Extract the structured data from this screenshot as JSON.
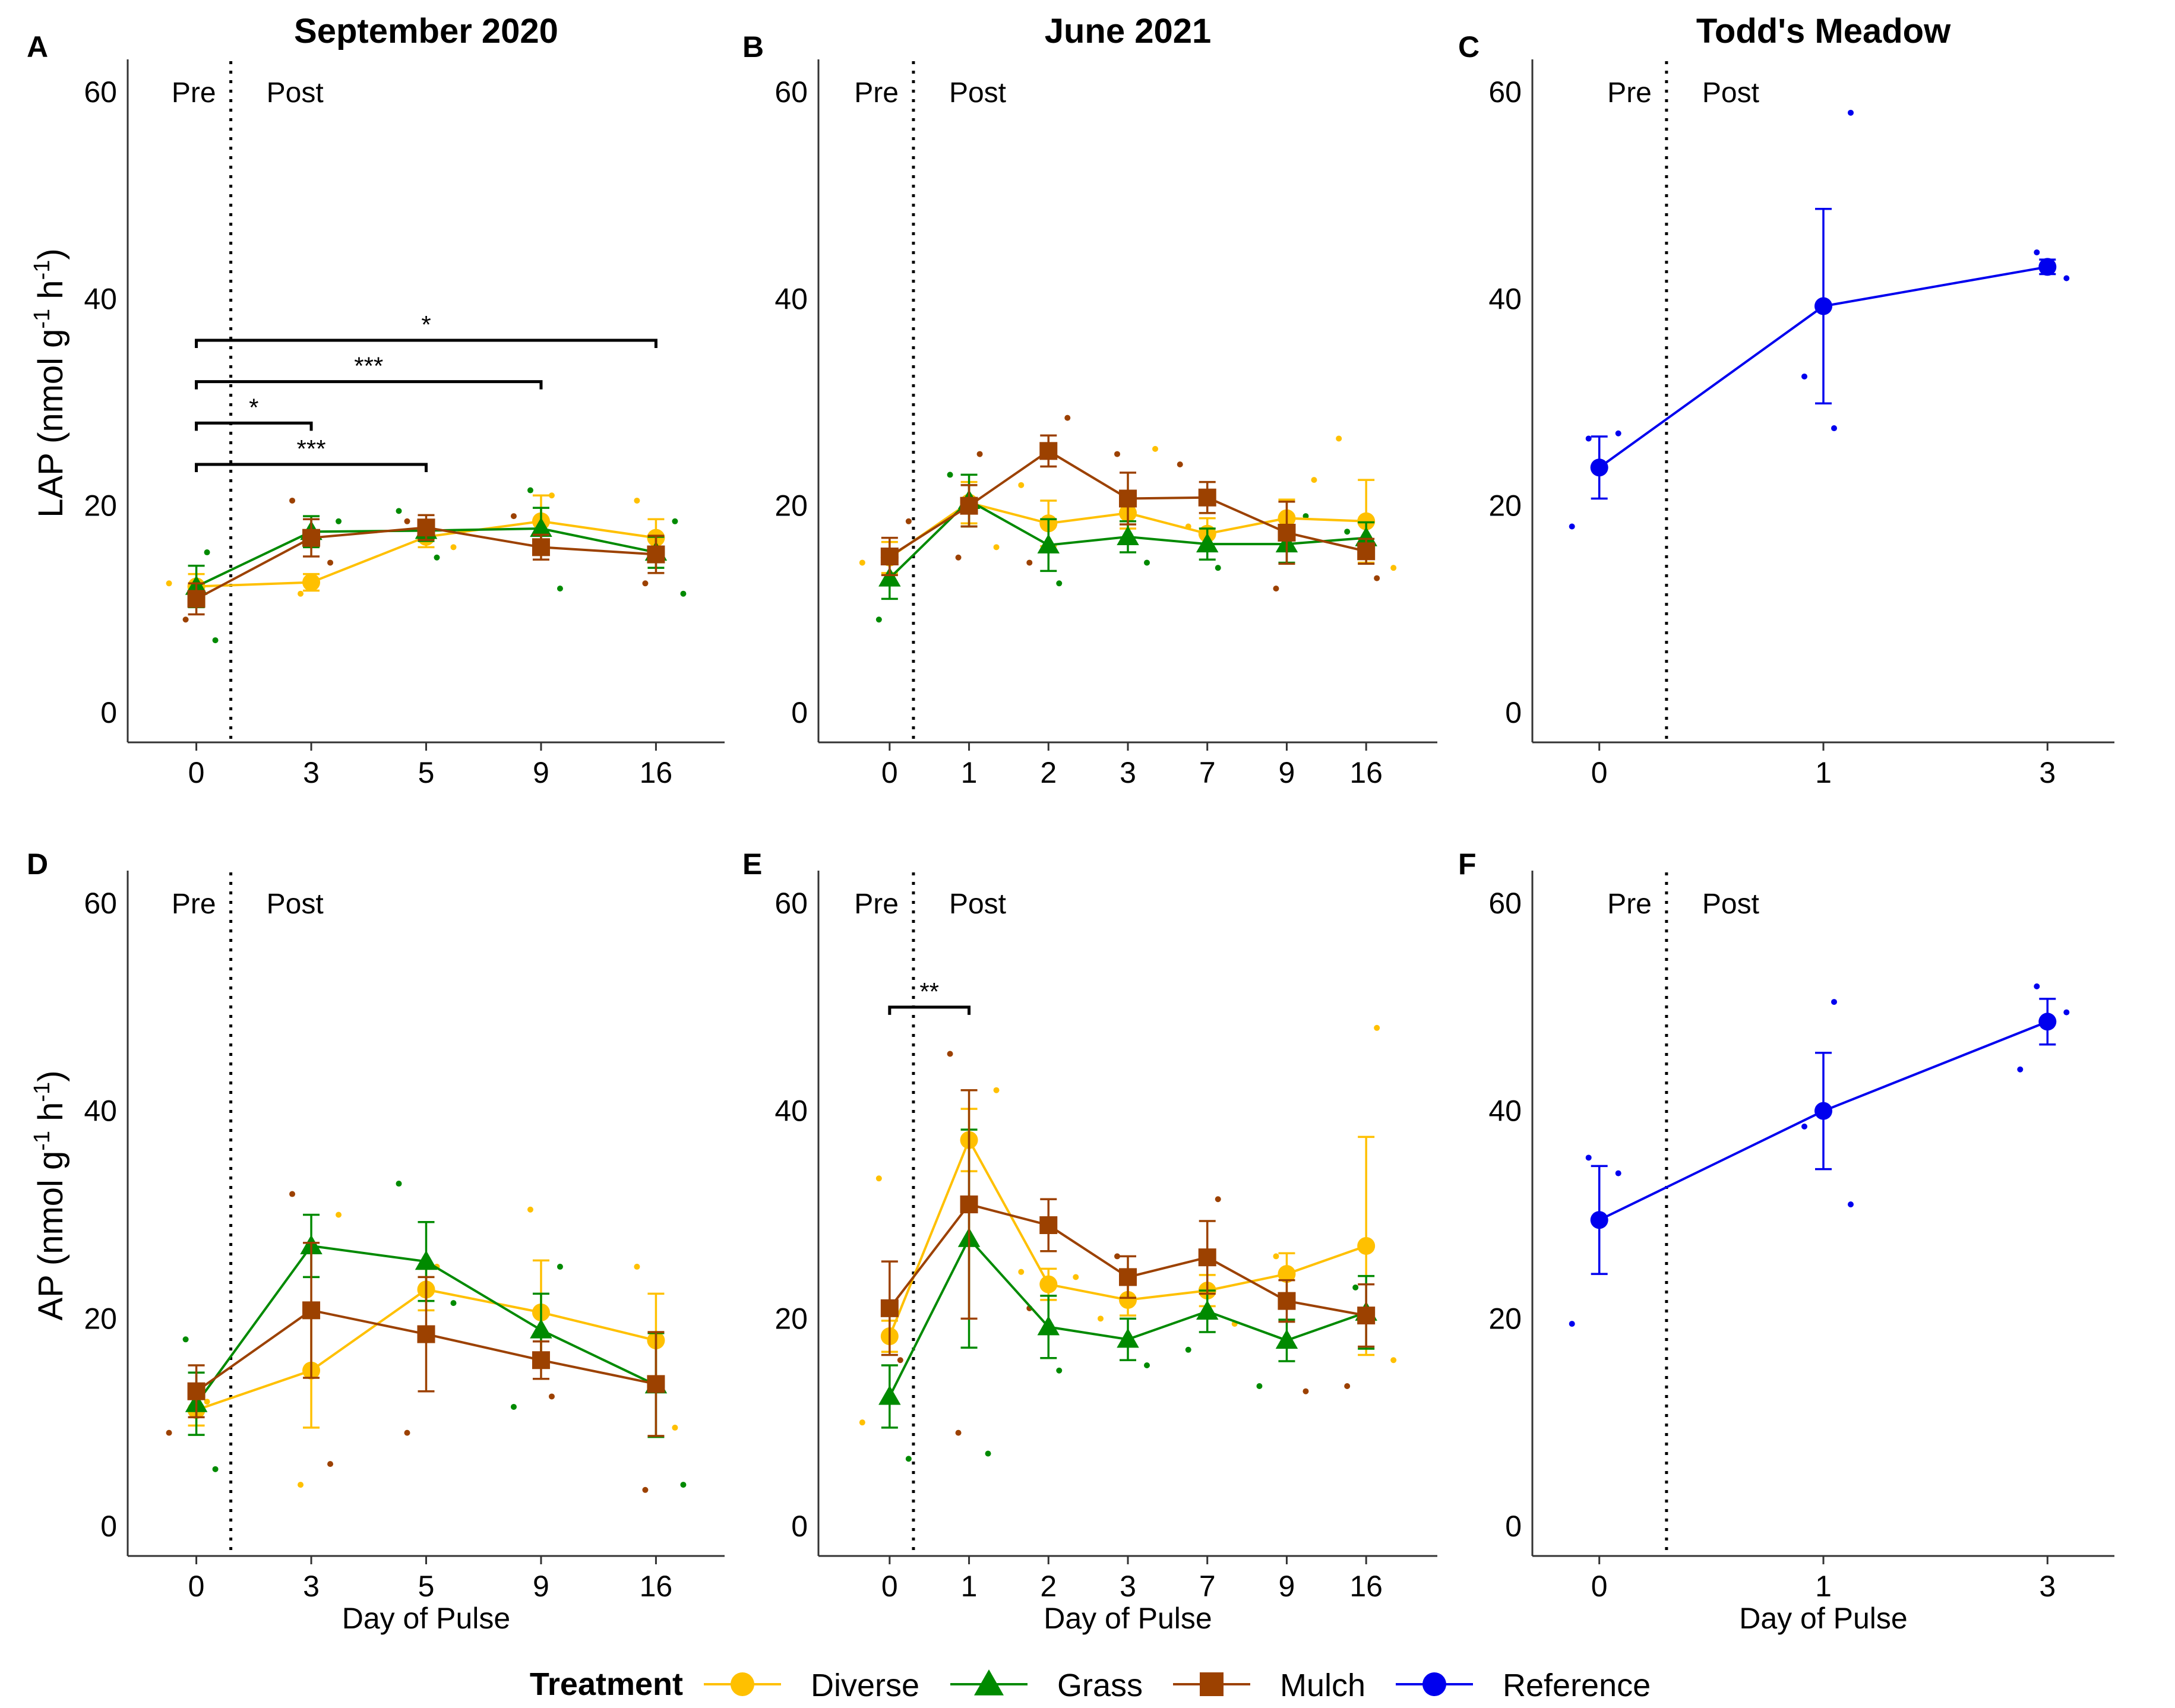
{
  "legend": {
    "title": "Treatment",
    "items": [
      {
        "name": "Diverse",
        "color": "#ffc000",
        "shape": "circle"
      },
      {
        "name": "Grass",
        "color": "#008a00",
        "shape": "triangle"
      },
      {
        "name": "Mulch",
        "color": "#9c4100",
        "shape": "square"
      },
      {
        "name": "Reference",
        "color": "#0000ee",
        "shape": "circle"
      }
    ]
  },
  "chart_data": [
    {
      "id": "A",
      "type": "line",
      "title": "September 2020",
      "xlabel": "",
      "ylabel": "LAP (nmol g-1 h-1)",
      "ylim": [
        0,
        60
      ],
      "yticks": [
        0,
        20,
        40,
        60
      ],
      "categories": [
        "0",
        "3",
        "5",
        "9",
        "16"
      ],
      "pre_label": "Pre",
      "post_label": "Post",
      "divider_after_index": 0,
      "series": [
        {
          "name": "Diverse",
          "values": [
            12.2,
            12.6,
            17.0,
            18.5,
            16.9
          ],
          "errors": [
            1.2,
            0.8,
            1.0,
            2.5,
            1.8
          ]
        },
        {
          "name": "Grass",
          "values": [
            12.2,
            17.5,
            17.6,
            17.8,
            15.5
          ],
          "errors": [
            2.0,
            1.5,
            1.0,
            2.0,
            1.5
          ]
        },
        {
          "name": "Mulch",
          "values": [
            11.0,
            16.9,
            17.9,
            16.0,
            15.3
          ],
          "errors": [
            1.5,
            1.8,
            1.2,
            1.2,
            1.8
          ]
        }
      ],
      "points": [
        {
          "x": 0,
          "y": 9.0,
          "s": "Mulch"
        },
        {
          "x": 0,
          "y": 7.0,
          "s": "Grass"
        },
        {
          "x": 0,
          "y": 12.5,
          "s": "Diverse"
        },
        {
          "x": 0,
          "y": 15.5,
          "s": "Grass"
        },
        {
          "x": 1,
          "y": 20.5,
          "s": "Mulch"
        },
        {
          "x": 1,
          "y": 18.5,
          "s": "Grass"
        },
        {
          "x": 1,
          "y": 11.5,
          "s": "Diverse"
        },
        {
          "x": 1,
          "y": 14.5,
          "s": "Mulch"
        },
        {
          "x": 2,
          "y": 19.5,
          "s": "Grass"
        },
        {
          "x": 2,
          "y": 15.0,
          "s": "Grass"
        },
        {
          "x": 2,
          "y": 18.5,
          "s": "Mulch"
        },
        {
          "x": 2,
          "y": 16.0,
          "s": "Diverse"
        },
        {
          "x": 3,
          "y": 21.5,
          "s": "Grass"
        },
        {
          "x": 3,
          "y": 12.0,
          "s": "Grass"
        },
        {
          "x": 3,
          "y": 19.0,
          "s": "Mulch"
        },
        {
          "x": 3,
          "y": 21.0,
          "s": "Diverse"
        },
        {
          "x": 4,
          "y": 20.5,
          "s": "Diverse"
        },
        {
          "x": 4,
          "y": 11.5,
          "s": "Grass"
        },
        {
          "x": 4,
          "y": 12.5,
          "s": "Mulch"
        },
        {
          "x": 4,
          "y": 18.5,
          "s": "Grass"
        }
      ],
      "brackets": [
        {
          "from": 0,
          "to": 4,
          "y": 36,
          "label": "*"
        },
        {
          "from": 0,
          "to": 3,
          "y": 32,
          "label": "***"
        },
        {
          "from": 0,
          "to": 1,
          "y": 28,
          "label": "*"
        },
        {
          "from": 0,
          "to": 2,
          "y": 24,
          "label": "***"
        }
      ]
    },
    {
      "id": "B",
      "type": "line",
      "title": "June 2021",
      "xlabel": "",
      "ylabel": "",
      "ylim": [
        0,
        60
      ],
      "yticks": [
        0,
        20,
        40,
        60
      ],
      "categories": [
        "0",
        "1",
        "2",
        "3",
        "7",
        "9",
        "16"
      ],
      "pre_label": "Pre",
      "post_label": "Post",
      "divider_after_index": 0,
      "series": [
        {
          "name": "Diverse",
          "values": [
            15.0,
            20.3,
            18.3,
            19.3,
            17.3,
            18.8,
            18.5
          ],
          "errors": [
            1.5,
            2.0,
            2.2,
            1.5,
            1.5,
            1.8,
            4.0
          ]
        },
        {
          "name": "Grass",
          "values": [
            13.0,
            20.5,
            16.2,
            17.0,
            16.3,
            16.3,
            16.9
          ],
          "errors": [
            2.0,
            2.5,
            2.5,
            1.5,
            1.5,
            1.8,
            1.5
          ]
        },
        {
          "name": "Mulch",
          "values": [
            15.1,
            20.0,
            25.3,
            20.7,
            20.8,
            17.4,
            15.6
          ],
          "errors": [
            1.8,
            2.0,
            1.5,
            2.5,
            1.5,
            3.0,
            1.2
          ]
        }
      ],
      "points": [
        {
          "x": 0,
          "y": 9.0,
          "s": "Grass"
        },
        {
          "x": 0,
          "y": 18.5,
          "s": "Mulch"
        },
        {
          "x": 0,
          "y": 14.5,
          "s": "Diverse"
        },
        {
          "x": 1,
          "y": 25.0,
          "s": "Mulch"
        },
        {
          "x": 1,
          "y": 23.0,
          "s": "Grass"
        },
        {
          "x": 1,
          "y": 16.0,
          "s": "Diverse"
        },
        {
          "x": 1,
          "y": 15.0,
          "s": "Mulch"
        },
        {
          "x": 2,
          "y": 28.5,
          "s": "Mulch"
        },
        {
          "x": 2,
          "y": 22.0,
          "s": "Diverse"
        },
        {
          "x": 2,
          "y": 12.5,
          "s": "Grass"
        },
        {
          "x": 2,
          "y": 14.5,
          "s": "Mulch"
        },
        {
          "x": 3,
          "y": 25.5,
          "s": "Diverse"
        },
        {
          "x": 3,
          "y": 25.0,
          "s": "Mulch"
        },
        {
          "x": 3,
          "y": 14.5,
          "s": "Grass"
        },
        {
          "x": 4,
          "y": 24.0,
          "s": "Mulch"
        },
        {
          "x": 4,
          "y": 14.0,
          "s": "Grass"
        },
        {
          "x": 4,
          "y": 18.0,
          "s": "Diverse"
        },
        {
          "x": 5,
          "y": 22.5,
          "s": "Diverse"
        },
        {
          "x": 5,
          "y": 12.0,
          "s": "Mulch"
        },
        {
          "x": 5,
          "y": 19.0,
          "s": "Grass"
        },
        {
          "x": 6,
          "y": 26.5,
          "s": "Diverse"
        },
        {
          "x": 6,
          "y": 13.0,
          "s": "Mulch"
        },
        {
          "x": 6,
          "y": 17.5,
          "s": "Grass"
        },
        {
          "x": 6,
          "y": 14.0,
          "s": "Diverse"
        }
      ],
      "brackets": []
    },
    {
      "id": "C",
      "type": "line",
      "title": "Todd's Meadow",
      "xlabel": "",
      "ylabel": "",
      "ylim": [
        0,
        60
      ],
      "yticks": [
        0,
        20,
        40,
        60
      ],
      "categories": [
        "0",
        "1",
        "3"
      ],
      "pre_label": "Pre",
      "post_label": "Post",
      "divider_after_index": 0,
      "series": [
        {
          "name": "Reference",
          "values": [
            23.7,
            39.3,
            43.1
          ],
          "errors": [
            3.0,
            9.4,
            0.7
          ]
        }
      ],
      "points": [
        {
          "x": 0,
          "y": 26.5,
          "s": "Reference"
        },
        {
          "x": 0,
          "y": 27.0,
          "s": "Reference"
        },
        {
          "x": 0,
          "y": 18.0,
          "s": "Reference"
        },
        {
          "x": 1,
          "y": 27.5,
          "s": "Reference"
        },
        {
          "x": 1,
          "y": 32.5,
          "s": "Reference"
        },
        {
          "x": 1,
          "y": 58.0,
          "s": "Reference"
        },
        {
          "x": 2,
          "y": 44.5,
          "s": "Reference"
        },
        {
          "x": 2,
          "y": 42.0,
          "s": "Reference"
        }
      ],
      "brackets": []
    },
    {
      "id": "D",
      "type": "line",
      "title": "",
      "xlabel": "Day of Pulse",
      "ylabel": "AP (nmol g-1 h-1)",
      "ylim": [
        0,
        60
      ],
      "yticks": [
        0,
        20,
        40,
        60
      ],
      "categories": [
        "0",
        "3",
        "5",
        "9",
        "16"
      ],
      "pre_label": "Pre",
      "post_label": "Post",
      "divider_after_index": 0,
      "series": [
        {
          "name": "Diverse",
          "values": [
            11.2,
            15.0,
            22.8,
            20.6,
            17.9
          ],
          "errors": [
            1.5,
            5.5,
            2.0,
            5.0,
            4.5
          ]
        },
        {
          "name": "Grass",
          "values": [
            11.8,
            27.0,
            25.5,
            18.9,
            13.6
          ],
          "errors": [
            3.0,
            3.0,
            3.8,
            3.5,
            5.0
          ]
        },
        {
          "name": "Mulch",
          "values": [
            13.0,
            20.8,
            18.5,
            16.0,
            13.7
          ],
          "errors": [
            2.5,
            6.5,
            5.5,
            1.8,
            5.0
          ]
        }
      ],
      "points": [
        {
          "x": 0,
          "y": 18.0,
          "s": "Grass"
        },
        {
          "x": 0,
          "y": 5.5,
          "s": "Grass"
        },
        {
          "x": 0,
          "y": 9.0,
          "s": "Mulch"
        },
        {
          "x": 0,
          "y": 12.0,
          "s": "Diverse"
        },
        {
          "x": 1,
          "y": 32.0,
          "s": "Mulch"
        },
        {
          "x": 1,
          "y": 30.0,
          "s": "Diverse"
        },
        {
          "x": 1,
          "y": 4.0,
          "s": "Diverse"
        },
        {
          "x": 1,
          "y": 6.0,
          "s": "Mulch"
        },
        {
          "x": 2,
          "y": 33.0,
          "s": "Grass"
        },
        {
          "x": 2,
          "y": 25.0,
          "s": "Diverse"
        },
        {
          "x": 2,
          "y": 9.0,
          "s": "Mulch"
        },
        {
          "x": 2,
          "y": 21.5,
          "s": "Grass"
        },
        {
          "x": 3,
          "y": 30.5,
          "s": "Diverse"
        },
        {
          "x": 3,
          "y": 25.0,
          "s": "Grass"
        },
        {
          "x": 3,
          "y": 11.5,
          "s": "Grass"
        },
        {
          "x": 3,
          "y": 12.5,
          "s": "Mulch"
        },
        {
          "x": 4,
          "y": 25.0,
          "s": "Diverse"
        },
        {
          "x": 4,
          "y": 4.0,
          "s": "Grass"
        },
        {
          "x": 4,
          "y": 3.5,
          "s": "Mulch"
        },
        {
          "x": 4,
          "y": 9.5,
          "s": "Diverse"
        }
      ],
      "brackets": []
    },
    {
      "id": "E",
      "type": "line",
      "title": "",
      "xlabel": "Day of Pulse",
      "ylabel": "",
      "ylim": [
        0,
        60
      ],
      "yticks": [
        0,
        20,
        40,
        60
      ],
      "categories": [
        "0",
        "1",
        "2",
        "3",
        "7",
        "9",
        "16"
      ],
      "pre_label": "Pre",
      "post_label": "Post",
      "divider_after_index": 0,
      "series": [
        {
          "name": "Diverse",
          "values": [
            18.3,
            37.2,
            23.3,
            21.8,
            22.7,
            24.3,
            27.0
          ],
          "errors": [
            1.5,
            3.0,
            1.5,
            1.5,
            1.5,
            2.0,
            10.5
          ]
        },
        {
          "name": "Grass",
          "values": [
            12.5,
            27.7,
            19.2,
            18.0,
            20.7,
            17.9,
            20.6
          ],
          "errors": [
            3.0,
            10.5,
            3.0,
            2.0,
            2.0,
            2.0,
            3.5
          ]
        },
        {
          "name": "Mulch",
          "values": [
            21.0,
            31.0,
            29.0,
            24.0,
            25.9,
            21.7,
            20.3
          ],
          "errors": [
            4.5,
            11.0,
            2.5,
            2.0,
            3.5,
            2.0,
            3.0
          ]
        }
      ],
      "points": [
        {
          "x": 0,
          "y": 33.5,
          "s": "Diverse"
        },
        {
          "x": 0,
          "y": 6.5,
          "s": "Grass"
        },
        {
          "x": 0,
          "y": 10.0,
          "s": "Diverse"
        },
        {
          "x": 0,
          "y": 16.0,
          "s": "Mulch"
        },
        {
          "x": 1,
          "y": 45.5,
          "s": "Mulch"
        },
        {
          "x": 1,
          "y": 42.0,
          "s": "Diverse"
        },
        {
          "x": 1,
          "y": 9.0,
          "s": "Mulch"
        },
        {
          "x": 1,
          "y": 7.0,
          "s": "Grass"
        },
        {
          "x": 2,
          "y": 24.5,
          "s": "Diverse"
        },
        {
          "x": 2,
          "y": 15.0,
          "s": "Grass"
        },
        {
          "x": 2,
          "y": 21.0,
          "s": "Mulch"
        },
        {
          "x": 2,
          "y": 24.0,
          "s": "Diverse"
        },
        {
          "x": 3,
          "y": 26.0,
          "s": "Mulch"
        },
        {
          "x": 3,
          "y": 15.5,
          "s": "Grass"
        },
        {
          "x": 3,
          "y": 20.0,
          "s": "Diverse"
        },
        {
          "x": 4,
          "y": 31.5,
          "s": "Mulch"
        },
        {
          "x": 4,
          "y": 17.0,
          "s": "Grass"
        },
        {
          "x": 4,
          "y": 19.5,
          "s": "Diverse"
        },
        {
          "x": 5,
          "y": 26.0,
          "s": "Diverse"
        },
        {
          "x": 5,
          "y": 13.0,
          "s": "Mulch"
        },
        {
          "x": 5,
          "y": 13.5,
          "s": "Grass"
        },
        {
          "x": 6,
          "y": 48.0,
          "s": "Diverse"
        },
        {
          "x": 6,
          "y": 13.5,
          "s": "Mulch"
        },
        {
          "x": 6,
          "y": 16.0,
          "s": "Diverse"
        },
        {
          "x": 6,
          "y": 23.0,
          "s": "Grass"
        }
      ],
      "brackets": [
        {
          "from": 0,
          "to": 1,
          "y": 50,
          "label": "**"
        }
      ]
    },
    {
      "id": "F",
      "type": "line",
      "title": "",
      "xlabel": "Day of Pulse",
      "ylabel": "",
      "ylim": [
        0,
        60
      ],
      "yticks": [
        0,
        20,
        40,
        60
      ],
      "categories": [
        "0",
        "1",
        "3"
      ],
      "pre_label": "Pre",
      "post_label": "Post",
      "divider_after_index": 0,
      "series": [
        {
          "name": "Reference",
          "values": [
            29.5,
            40.0,
            48.6
          ],
          "errors": [
            5.2,
            5.6,
            2.2
          ]
        }
      ],
      "points": [
        {
          "x": 0,
          "y": 35.5,
          "s": "Reference"
        },
        {
          "x": 0,
          "y": 34.0,
          "s": "Reference"
        },
        {
          "x": 0,
          "y": 19.5,
          "s": "Reference"
        },
        {
          "x": 1,
          "y": 50.5,
          "s": "Reference"
        },
        {
          "x": 1,
          "y": 38.5,
          "s": "Reference"
        },
        {
          "x": 1,
          "y": 31.0,
          "s": "Reference"
        },
        {
          "x": 2,
          "y": 52.0,
          "s": "Reference"
        },
        {
          "x": 2,
          "y": 49.5,
          "s": "Reference"
        },
        {
          "x": 2,
          "y": 44.0,
          "s": "Reference"
        }
      ],
      "brackets": []
    }
  ]
}
